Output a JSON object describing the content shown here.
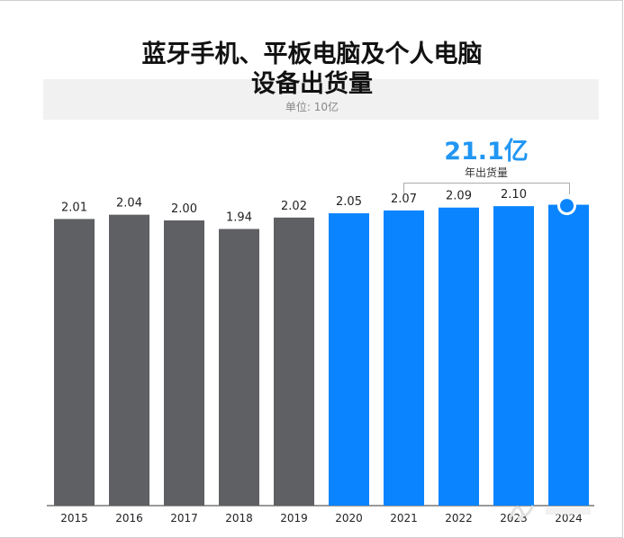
{
  "chart_data": {
    "type": "bar",
    "title": "蓝牙手机、平板电脑及个人电脑",
    "title_line2": "设备出货量",
    "unit_label": "单位: 10亿",
    "categories": [
      "2015",
      "2016",
      "2017",
      "2018",
      "2019",
      "2020",
      "2021",
      "2022",
      "2023",
      "2024"
    ],
    "values": [
      2.01,
      2.04,
      2.0,
      1.94,
      2.02,
      2.05,
      2.07,
      2.09,
      2.1,
      2.11
    ],
    "data_labels": [
      "2.01",
      "2.04",
      "2.00",
      "1.94",
      "2.02",
      "2.05",
      "2.07",
      "2.09",
      "2.10",
      ""
    ],
    "bar_colors": [
      "#5f6063",
      "#5f6063",
      "#5f6063",
      "#5f6063",
      "#5f6063",
      "#0a84ff",
      "#0a84ff",
      "#0a84ff",
      "#0a84ff",
      "#0a84ff"
    ],
    "callout": {
      "value": "21.1亿",
      "label": "年出货量"
    },
    "x_tick_labels": [
      "2015",
      "2016",
      "2017",
      "2018",
      "2019",
      "2020",
      "2021",
      "2022",
      "2023",
      "2024"
    ],
    "grid": false
  },
  "colors": {
    "historical": "#5f6063",
    "forecast": "#0a84ff",
    "callout": "#2196f3"
  }
}
